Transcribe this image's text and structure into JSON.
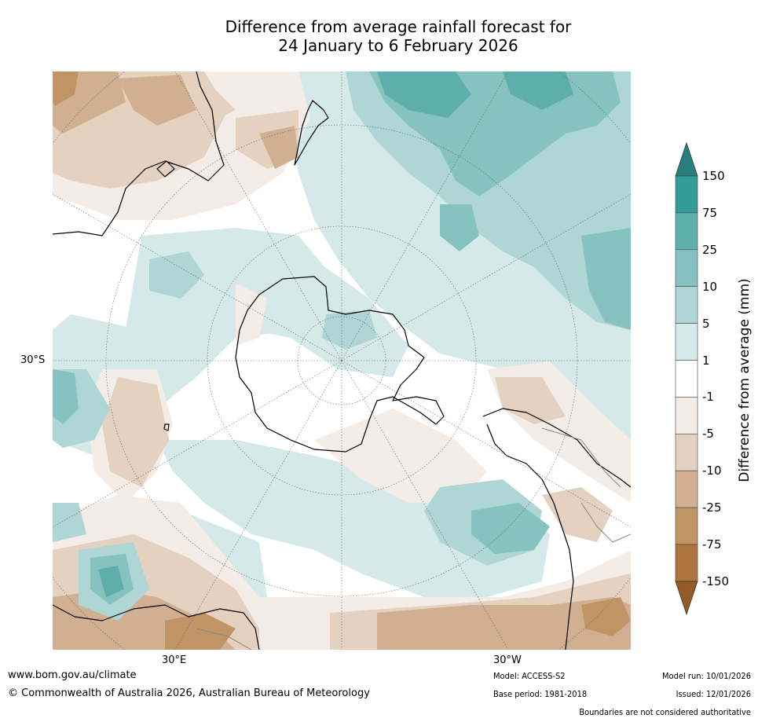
{
  "title": {
    "line1": "Difference from average rainfall forecast for",
    "line2": "24 January to 6 February 2026"
  },
  "map": {
    "projection": "south polar stereographic",
    "lat_labels": [
      "30°S"
    ],
    "lon_labels": [
      "30°E",
      "30°W"
    ]
  },
  "colorbar": {
    "title": "Difference from average (mm)",
    "ticks": [
      "150",
      "75",
      "25",
      "10",
      "5",
      "1",
      "-1",
      "-5",
      "-10",
      "-25",
      "-75",
      "-150"
    ],
    "bins": [
      {
        "range": ">150",
        "color": "#287e7c"
      },
      {
        "range": "75 to 150",
        "color": "#339c98"
      },
      {
        "range": "25 to 75",
        "color": "#5eaeab"
      },
      {
        "range": "10 to 25",
        "color": "#86c2c0"
      },
      {
        "range": "5 to 10",
        "color": "#aed6d5"
      },
      {
        "range": "1 to 5",
        "color": "#d5e9e8"
      },
      {
        "range": "-1 to 1",
        "color": "#ffffff"
      },
      {
        "range": "-5 to -1",
        "color": "#f3ece7"
      },
      {
        "range": "-10 to -5",
        "color": "#e4d1c0"
      },
      {
        "range": "-25 to -10",
        "color": "#d1b091"
      },
      {
        "range": "-75 to -25",
        "color": "#c19465"
      },
      {
        "range": "-150 to -75",
        "color": "#ad763e"
      },
      {
        "range": "<-150",
        "color": "#945a28"
      }
    ]
  },
  "footer": {
    "website": "www.bom.gov.au/climate",
    "copyright": "© Commonwealth of Australia 2026, Australian Bureau of Meteorology",
    "model": "Model: ACCESS-S2",
    "base_period": "Base period: 1981-2018",
    "model_run": "Model run: 10/01/2026",
    "issued": "Issued: 12/01/2026",
    "disclaimer": "Boundaries are not considered authoritative"
  }
}
